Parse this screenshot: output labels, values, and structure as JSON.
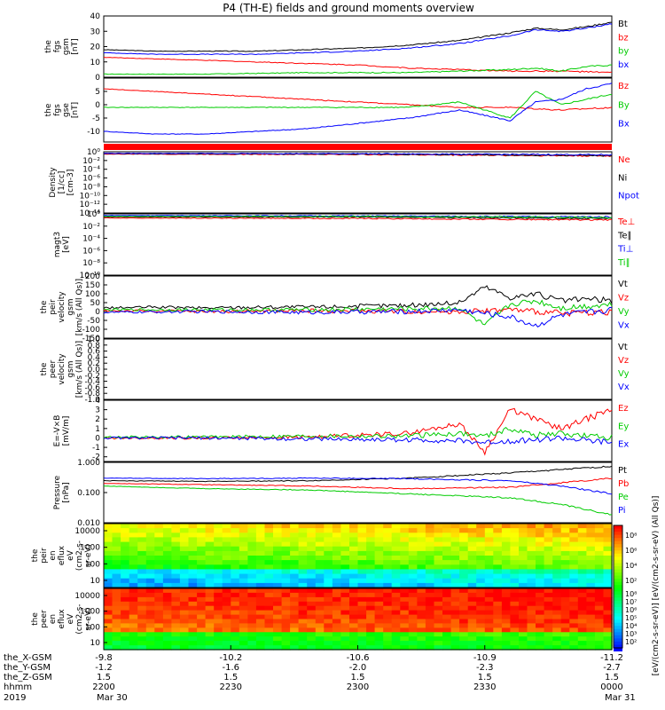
{
  "title": "P4 (TH-E) fields and ground moments overview",
  "colors": {
    "black": "#000000",
    "red": "#ff0000",
    "green": "#00cc00",
    "blue": "#0000ff"
  },
  "chart_data": [
    {
      "type": "line",
      "panel": "fgs_gsm",
      "ylabel": [
        "the",
        "fgs",
        "gsm",
        "[nT]"
      ],
      "ylim": [
        0,
        40
      ],
      "yticks": [
        "0",
        "10",
        "20",
        "30",
        "40"
      ],
      "series": [
        {
          "name": "Bt",
          "color": "black",
          "x": [
            0,
            0.1,
            0.2,
            0.3,
            0.4,
            0.5,
            0.6,
            0.7,
            0.8,
            0.85,
            0.9,
            0.95,
            1.0
          ],
          "y": [
            18,
            17,
            17,
            17,
            18,
            19,
            21,
            24,
            29,
            32,
            31,
            33,
            36
          ]
        },
        {
          "name": "bz",
          "color": "red",
          "x": [
            0,
            0.1,
            0.2,
            0.3,
            0.4,
            0.5,
            0.6,
            0.7,
            0.8,
            0.9,
            1.0
          ],
          "y": [
            13,
            12,
            11,
            10,
            9,
            8,
            6,
            5,
            4,
            4,
            3
          ]
        },
        {
          "name": "by",
          "color": "green",
          "x": [
            0,
            0.2,
            0.4,
            0.6,
            0.7,
            0.8,
            0.85,
            0.9,
            0.95,
            1.0
          ],
          "y": [
            2,
            2,
            3,
            3,
            4,
            5,
            6,
            4,
            7,
            8
          ]
        },
        {
          "name": "bx",
          "color": "blue",
          "x": [
            0,
            0.1,
            0.2,
            0.3,
            0.4,
            0.5,
            0.6,
            0.7,
            0.8,
            0.85,
            0.9,
            0.95,
            1.0
          ],
          "y": [
            16,
            15,
            15,
            15,
            16,
            17,
            19,
            22,
            27,
            31,
            30,
            32,
            35
          ]
        }
      ]
    },
    {
      "type": "line",
      "panel": "fgs_gse",
      "ylabel": [
        "the",
        "fgs",
        "gse",
        "[nT]"
      ],
      "ylim": [
        -14,
        10
      ],
      "yticks": [
        "-10",
        "-5",
        "0",
        "5"
      ],
      "series": [
        {
          "name": "Bz",
          "color": "red",
          "x": [
            0,
            0.1,
            0.2,
            0.3,
            0.4,
            0.5,
            0.6,
            0.7,
            0.8,
            0.9,
            1.0
          ],
          "y": [
            6,
            5,
            4,
            3,
            2,
            1,
            0,
            -1,
            -1,
            -2,
            -1
          ]
        },
        {
          "name": "By",
          "color": "green",
          "x": [
            0,
            0.1,
            0.2,
            0.3,
            0.4,
            0.5,
            0.6,
            0.7,
            0.75,
            0.8,
            0.85,
            0.9,
            0.95,
            1.0
          ],
          "y": [
            -1,
            -1,
            -1,
            -1,
            -1,
            -1,
            -1,
            1,
            -2,
            -5,
            5,
            0,
            2,
            4
          ]
        },
        {
          "name": "Bx",
          "color": "blue",
          "x": [
            0,
            0.1,
            0.2,
            0.3,
            0.4,
            0.5,
            0.6,
            0.7,
            0.75,
            0.8,
            0.85,
            0.9,
            0.95,
            1.0
          ],
          "y": [
            -10,
            -11,
            -11,
            -10,
            -9,
            -7,
            -5,
            -2,
            -4,
            -6,
            1,
            2,
            6,
            8
          ]
        }
      ]
    },
    {
      "type": "line",
      "panel": "density",
      "ylabel": [
        "Density",
        "[1/cc]",
        "[cm-3]"
      ],
      "yscale": "log",
      "ylim": [
        -14,
        2
      ],
      "yticks": [
        "10⁰",
        "10⁻²",
        "10⁻⁴",
        "10⁻⁶",
        "10⁻⁸",
        "10⁻¹⁰",
        "10⁻¹²",
        "10⁻¹⁴"
      ],
      "series": [
        {
          "name": "Ne",
          "color": "red",
          "x": [
            0,
            0.5,
            1.0
          ],
          "y": [
            1.4,
            1.3,
            0.9
          ]
        },
        {
          "name": "Ni",
          "color": "black",
          "x": [
            0,
            0.5,
            1.0
          ],
          "y": [
            1.5,
            1.4,
            1.0
          ]
        },
        {
          "name": "Npot",
          "color": "blue",
          "x": [
            0,
            0.5,
            1.0
          ],
          "y": [
            1.6,
            1.5,
            1.2
          ]
        }
      ]
    },
    {
      "type": "line",
      "panel": "temperature",
      "ylabel": [
        "magt3",
        "[eV]"
      ],
      "yscale": "log",
      "ylim": [
        -10,
        2
      ],
      "yticks": [
        "10⁰",
        "10⁻²",
        "10⁻⁴",
        "10⁻⁶",
        "10⁻⁸",
        "10⁻¹⁰"
      ],
      "series": [
        {
          "name": "Te⊥",
          "color": "red",
          "x": [
            0,
            0.5,
            1.0
          ],
          "y": [
            1.2,
            1.1,
            0.8
          ]
        },
        {
          "name": "Te∥",
          "color": "black",
          "x": [
            0,
            0.5,
            1.0
          ],
          "y": [
            1.4,
            1.4,
            1.1
          ]
        },
        {
          "name": "Ti⊥",
          "color": "blue",
          "x": [
            0,
            0.5,
            1.0
          ],
          "y": [
            1.7,
            1.6,
            1.4
          ]
        },
        {
          "name": "Ti∥",
          "color": "green",
          "x": [
            0,
            0.5,
            1.0
          ],
          "y": [
            1.5,
            1.5,
            1.3
          ]
        }
      ]
    },
    {
      "type": "line",
      "panel": "peir_velocity",
      "ylabel": [
        "the",
        "peir",
        "velocity",
        "gsm",
        "[km/s (All Qs)]"
      ],
      "ylim": [
        -150,
        200
      ],
      "yticks": [
        "-150",
        "-100",
        "-50",
        "0",
        "50",
        "100",
        "150",
        "200"
      ],
      "series": [
        {
          "name": "Vt",
          "color": "black",
          "x": [
            0,
            0.1,
            0.2,
            0.3,
            0.4,
            0.5,
            0.6,
            0.7,
            0.75,
            0.8,
            0.85,
            0.9,
            0.95,
            1.0
          ],
          "y": [
            20,
            25,
            20,
            25,
            25,
            30,
            35,
            50,
            140,
            80,
            100,
            60,
            70,
            60
          ]
        },
        {
          "name": "Vz",
          "color": "red",
          "x": [
            0,
            0.2,
            0.4,
            0.6,
            0.7,
            0.8,
            0.9,
            1.0
          ],
          "y": [
            5,
            0,
            5,
            0,
            0,
            10,
            -10,
            0
          ]
        },
        {
          "name": "Vy",
          "color": "green",
          "x": [
            0,
            0.2,
            0.4,
            0.6,
            0.7,
            0.75,
            0.8,
            0.85,
            0.9,
            1.0
          ],
          "y": [
            10,
            10,
            10,
            15,
            20,
            -80,
            40,
            60,
            20,
            40
          ]
        },
        {
          "name": "Vx",
          "color": "blue",
          "x": [
            0,
            0.2,
            0.4,
            0.6,
            0.7,
            0.8,
            0.85,
            0.9,
            1.0
          ],
          "y": [
            -5,
            0,
            -5,
            0,
            10,
            -30,
            -80,
            -20,
            10
          ]
        }
      ]
    },
    {
      "type": "line",
      "panel": "peer_velocity",
      "ylabel": [
        "the",
        "peer",
        "velocity",
        "gsm",
        "[km/s (All Qs)]"
      ],
      "ylim": [
        -1.0,
        1.0
      ],
      "yticks": [
        "-1.0",
        "-0.8",
        "-0.6",
        "-0.4",
        "-0.2",
        "0.0",
        "0.2",
        "0.4",
        "0.6",
        "0.8",
        "1.0"
      ],
      "series": [
        {
          "name": "Vt",
          "color": "black",
          "x": [],
          "y": []
        },
        {
          "name": "Vz",
          "color": "red",
          "x": [],
          "y": []
        },
        {
          "name": "Vy",
          "color": "green",
          "x": [],
          "y": []
        },
        {
          "name": "Vx",
          "color": "blue",
          "x": [],
          "y": []
        }
      ]
    },
    {
      "type": "line",
      "panel": "efield",
      "ylabel": [
        "E=-V×B",
        "[mV/m]"
      ],
      "ylim": [
        -2.5,
        4
      ],
      "yticks": [
        "-2",
        "-1",
        "0",
        "1",
        "2",
        "3",
        "4"
      ],
      "series": [
        {
          "name": "Ez",
          "color": "red",
          "x": [
            0,
            0.2,
            0.4,
            0.6,
            0.7,
            0.75,
            0.8,
            0.85,
            0.9,
            0.95,
            1.0
          ],
          "y": [
            0,
            0,
            0.1,
            0.5,
            1.5,
            -1.5,
            3,
            2,
            1,
            2,
            3
          ]
        },
        {
          "name": "Ey",
          "color": "green",
          "x": [
            0,
            0.2,
            0.4,
            0.6,
            0.7,
            0.75,
            0.8,
            0.85,
            0.9,
            0.95,
            1.0
          ],
          "y": [
            0.1,
            0.1,
            0.2,
            0.2,
            0.5,
            0.2,
            1,
            0.3,
            0.5,
            0.2,
            0
          ]
        },
        {
          "name": "Ex",
          "color": "blue",
          "x": [
            0,
            0.2,
            0.4,
            0.6,
            0.7,
            0.75,
            0.8,
            0.85,
            0.9,
            0.95,
            1.0
          ],
          "y": [
            0,
            0,
            -0.1,
            -0.2,
            -0.3,
            -0.5,
            -0.3,
            -0.2,
            0,
            -0.3,
            -0.5
          ]
        }
      ]
    },
    {
      "type": "line",
      "panel": "pressure",
      "ylabel": [
        "Pressure",
        "[nPa]"
      ],
      "yscale": "log",
      "ylim": [
        -2.3,
        0
      ],
      "yticks": [
        "1.000",
        "0.100",
        "0.010"
      ],
      "series": [
        {
          "name": "Pt",
          "color": "black",
          "x": [
            0,
            0.2,
            0.4,
            0.6,
            0.8,
            1.0
          ],
          "y": [
            -0.7,
            -0.72,
            -0.7,
            -0.6,
            -0.4,
            -0.15
          ]
        },
        {
          "name": "Pb",
          "color": "red",
          "x": [
            0,
            0.2,
            0.4,
            0.6,
            0.8,
            1.0
          ],
          "y": [
            -0.8,
            -0.85,
            -0.9,
            -1.0,
            -0.95,
            -0.6
          ]
        },
        {
          "name": "Pe",
          "color": "green",
          "x": [
            0,
            0.2,
            0.4,
            0.6,
            0.8,
            0.9,
            1.0
          ],
          "y": [
            -0.9,
            -1.0,
            -1.05,
            -1.2,
            -1.35,
            -1.6,
            -2.0
          ]
        },
        {
          "name": "Pi",
          "color": "blue",
          "x": [
            0,
            0.2,
            0.4,
            0.6,
            0.8,
            0.9,
            1.0
          ],
          "y": [
            -0.6,
            -0.62,
            -0.6,
            -0.62,
            -0.7,
            -0.9,
            -1.2
          ]
        }
      ]
    },
    {
      "type": "heatmap",
      "panel": "peir_eflux",
      "ylabel": [
        "the",
        "peir",
        "en",
        "eflux",
        "eV",
        "(cm2-s-",
        "sr-eV)"
      ],
      "yscale": "log",
      "yticks": [
        "10",
        "100",
        "1000",
        "10000"
      ]
    },
    {
      "type": "heatmap",
      "panel": "peer_eflux",
      "ylabel": [
        "the",
        "peer",
        "en",
        "eflux",
        "eV",
        "(cm2-s-",
        "sr-eV)"
      ],
      "yscale": "log",
      "yticks": [
        "10",
        "100",
        "1000",
        "10000"
      ]
    }
  ],
  "colorbar": {
    "label": "[eV/(cm2-s-sr-eV)] [eV/(cm2-s-sr-eV) (All Qs)]",
    "ticks1": [
      "10⁸",
      "10⁶",
      "10⁴",
      "10²"
    ],
    "ticks2": [
      "10⁸",
      "10⁷",
      "10⁶",
      "10⁵",
      "10⁴",
      "10³",
      "10²"
    ]
  },
  "xaxis": {
    "row_labels": [
      "the_X-GSM",
      "the_Y-GSM",
      "the_Z-GSM",
      "hhmm",
      "2019"
    ],
    "ticks": [
      {
        "pos": 0,
        "vals": [
          "-9.8",
          "-1.2",
          "1.5",
          "2200",
          "Mar 30"
        ]
      },
      {
        "pos": 0.25,
        "vals": [
          "-10.2",
          "-1.6",
          "1.5",
          "2230",
          ""
        ]
      },
      {
        "pos": 0.5,
        "vals": [
          "-10.6",
          "-2.0",
          "1.5",
          "2300",
          ""
        ]
      },
      {
        "pos": 0.75,
        "vals": [
          "-10.9",
          "-2.3",
          "1.5",
          "2330",
          ""
        ]
      },
      {
        "pos": 1,
        "vals": [
          "-11.2",
          "-2.7",
          "1.5",
          "0000",
          "Mar 31"
        ]
      }
    ]
  }
}
